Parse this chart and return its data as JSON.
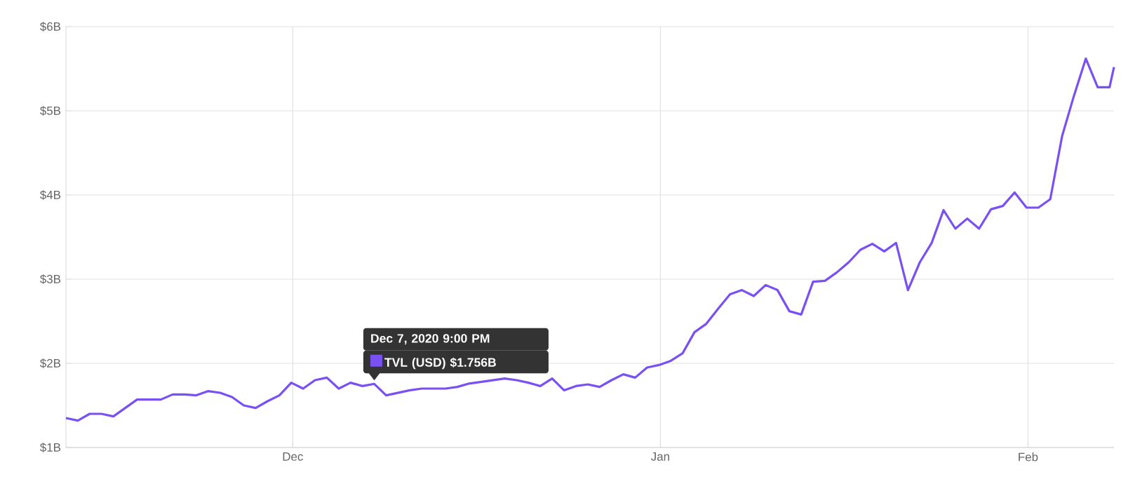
{
  "chart_data": {
    "type": "line",
    "x": [
      "2020-11-11T21:00",
      "2020-11-12T21:00",
      "2020-11-13T21:00",
      "2020-11-14T21:00",
      "2020-11-15T21:00",
      "2020-11-16T21:00",
      "2020-11-17T21:00",
      "2020-11-18T21:00",
      "2020-11-19T21:00",
      "2020-11-20T21:00",
      "2020-11-21T21:00",
      "2020-11-22T21:00",
      "2020-11-23T21:00",
      "2020-11-24T21:00",
      "2020-11-25T21:00",
      "2020-11-26T21:00",
      "2020-11-27T21:00",
      "2020-11-28T21:00",
      "2020-11-29T21:00",
      "2020-11-30T21:00",
      "2020-12-01T21:00",
      "2020-12-02T21:00",
      "2020-12-03T21:00",
      "2020-12-04T21:00",
      "2020-12-05T21:00",
      "2020-12-06T21:00",
      "2020-12-07T21:00",
      "2020-12-08T21:00",
      "2020-12-09T21:00",
      "2020-12-10T21:00",
      "2020-12-11T21:00",
      "2020-12-12T21:00",
      "2020-12-13T21:00",
      "2020-12-14T21:00",
      "2020-12-15T21:00",
      "2020-12-16T21:00",
      "2020-12-17T21:00",
      "2020-12-18T21:00",
      "2020-12-19T21:00",
      "2020-12-20T21:00",
      "2020-12-21T21:00",
      "2020-12-22T21:00",
      "2020-12-23T21:00",
      "2020-12-24T21:00",
      "2020-12-25T21:00",
      "2020-12-26T21:00",
      "2020-12-27T21:00",
      "2020-12-28T21:00",
      "2020-12-29T21:00",
      "2020-12-30T21:00",
      "2020-12-31T21:00",
      "2021-01-01T21:00",
      "2021-01-02T21:00",
      "2021-01-03T21:00",
      "2021-01-04T21:00",
      "2021-01-05T21:00",
      "2021-01-06T21:00",
      "2021-01-07T21:00",
      "2021-01-08T21:00",
      "2021-01-09T21:00",
      "2021-01-10T21:00",
      "2021-01-11T21:00",
      "2021-01-12T21:00",
      "2021-01-13T21:00",
      "2021-01-14T21:00",
      "2021-01-15T21:00",
      "2021-01-16T21:00",
      "2021-01-17T21:00",
      "2021-01-18T21:00",
      "2021-01-19T21:00",
      "2021-01-20T21:00",
      "2021-01-21T21:00",
      "2021-01-22T21:00",
      "2021-01-23T21:00",
      "2021-01-24T21:00",
      "2021-01-25T21:00",
      "2021-01-26T21:00",
      "2021-01-27T21:00",
      "2021-01-28T21:00",
      "2021-01-29T21:00",
      "2021-01-30T21:00",
      "2021-01-31T21:00",
      "2021-02-01T21:00",
      "2021-02-02T21:00",
      "2021-02-03T21:00",
      "2021-02-04T21:00",
      "2021-02-05T21:00",
      "2021-02-06T21:00",
      "2021-02-07T21:00",
      "2021-02-08T06:00"
    ],
    "series": [
      {
        "color": "#7950f2",
        "values": [
          1.35,
          1.32,
          1.4,
          1.4,
          1.37,
          1.47,
          1.57,
          1.57,
          1.57,
          1.63,
          1.63,
          1.62,
          1.67,
          1.65,
          1.6,
          1.5,
          1.47,
          1.55,
          1.62,
          1.77,
          1.7,
          1.8,
          1.83,
          1.7,
          1.77,
          1.73,
          1.756,
          1.62,
          1.65,
          1.68,
          1.7,
          1.7,
          1.7,
          1.72,
          1.76,
          1.78,
          1.8,
          1.82,
          1.8,
          1.77,
          1.73,
          1.82,
          1.68,
          1.73,
          1.75,
          1.72,
          1.8,
          1.87,
          1.83,
          1.95,
          1.98,
          2.03,
          2.12,
          2.37,
          2.47,
          2.65,
          2.82,
          2.87,
          2.8,
          2.93,
          2.87,
          2.62,
          2.58,
          2.97,
          2.98,
          3.08,
          3.2,
          3.35,
          3.42,
          3.33,
          3.43,
          2.87,
          3.2,
          3.43,
          3.82,
          3.6,
          3.72,
          3.6,
          3.83,
          3.87,
          4.03,
          3.85,
          3.85,
          3.95,
          4.7,
          5.18,
          5.62,
          5.28,
          5.28,
          5.52
        ]
      }
    ],
    "xlim": [
      "2020-11-11T21:00",
      "2021-02-08T06:00"
    ],
    "xticks": [
      {
        "value": "2020-12-01",
        "label": "Dec"
      },
      {
        "value": "2021-01-01",
        "label": "Jan"
      },
      {
        "value": "2021-02-01",
        "label": "Feb"
      }
    ],
    "ylim": [
      1,
      6
    ],
    "yticks": [
      {
        "value": 1,
        "label": "$1B"
      },
      {
        "value": 2,
        "label": "$2B"
      },
      {
        "value": 3,
        "label": "$3B"
      },
      {
        "value": 4,
        "label": "$4B"
      },
      {
        "value": 5,
        "label": "$5B"
      },
      {
        "value": 6,
        "label": "$6B"
      }
    ],
    "grid": true,
    "annotations": [
      "Dec 7, 2020 9:00 PM",
      {
        "text": "TVL (USD) $1.756B",
        "x": "2020-12-07T21:00",
        "y": 1.756
      }
    ]
  }
}
